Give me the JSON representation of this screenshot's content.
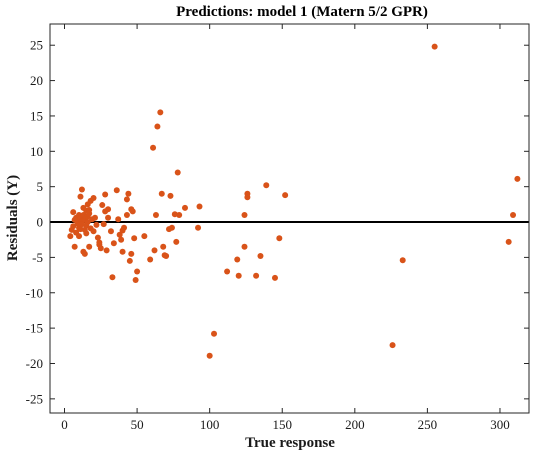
{
  "chart_data": {
    "type": "scatter",
    "title": "Predictions: model 1 (Matern 5/2 GPR)",
    "xlabel": "True response",
    "ylabel": "Residuals (Y)",
    "xlim": [
      -10,
      320
    ],
    "ylim": [
      -27,
      28
    ],
    "xticks": [
      "0",
      "50",
      "100",
      "150",
      "200",
      "250",
      "300"
    ],
    "yticks": [
      "25",
      "20",
      "15",
      "10",
      "5",
      "0",
      "-5",
      "-10",
      "-15",
      "-20",
      "-25"
    ],
    "grid": false,
    "reference_line_y": 0,
    "colors": {
      "points": "#D95319",
      "zero_line": "#000000",
      "axes": "#262626"
    },
    "series": [
      {
        "points": [
          [
            4,
            -2.0
          ],
          [
            5,
            -1.1
          ],
          [
            6,
            1.4
          ],
          [
            6,
            -0.6
          ],
          [
            7,
            0.3
          ],
          [
            7,
            -3.5
          ],
          [
            8,
            -1.5
          ],
          [
            8,
            0.6
          ],
          [
            9,
            -0.2
          ],
          [
            9,
            0.3
          ],
          [
            10,
            -0.8
          ],
          [
            10,
            1.0
          ],
          [
            10,
            -2.0
          ],
          [
            11,
            3.6
          ],
          [
            11,
            0.5
          ],
          [
            11,
            -1.0
          ],
          [
            12,
            4.6
          ],
          [
            12,
            0.1
          ],
          [
            12,
            -0.3
          ],
          [
            13,
            2.0
          ],
          [
            13,
            -4.2
          ],
          [
            13,
            1.0
          ],
          [
            14,
            0.3
          ],
          [
            14,
            -1.1
          ],
          [
            14,
            -4.5
          ],
          [
            15,
            0.7
          ],
          [
            15,
            1.6
          ],
          [
            15,
            -0.5
          ],
          [
            15,
            -1.6
          ],
          [
            16,
            2.5
          ],
          [
            16,
            0.0
          ],
          [
            16,
            0.8
          ],
          [
            17,
            -3.5
          ],
          [
            17,
            1.7
          ],
          [
            17,
            1.2
          ],
          [
            18,
            3.0
          ],
          [
            18,
            -0.9
          ],
          [
            19,
            0.4
          ],
          [
            20,
            3.4
          ],
          [
            20,
            -1.3
          ],
          [
            21,
            0.6
          ],
          [
            22,
            -0.4
          ],
          [
            23,
            -2.2
          ],
          [
            24,
            -3.2
          ],
          [
            24,
            -2.9
          ],
          [
            25,
            -3.7
          ],
          [
            26,
            2.4
          ],
          [
            27,
            -0.3
          ],
          [
            28,
            3.9
          ],
          [
            28,
            1.5
          ],
          [
            29,
            -4.0
          ],
          [
            30,
            1.8
          ],
          [
            30,
            0.6
          ],
          [
            32,
            -1.3
          ],
          [
            33,
            -7.8
          ],
          [
            34,
            -3.0
          ],
          [
            36,
            4.5
          ],
          [
            37,
            0.4
          ],
          [
            38,
            -1.8
          ],
          [
            39,
            -2.5
          ],
          [
            40,
            -4.2
          ],
          [
            40,
            -1.2
          ],
          [
            41,
            -0.8
          ],
          [
            43,
            1.0
          ],
          [
            43,
            3.2
          ],
          [
            44,
            4.0
          ],
          [
            45,
            -5.5
          ],
          [
            46,
            -4.5
          ],
          [
            46,
            1.8
          ],
          [
            47,
            1.5
          ],
          [
            48,
            -2.3
          ],
          [
            49,
            -8.2
          ],
          [
            50,
            -7.0
          ],
          [
            55,
            -2.0
          ],
          [
            59,
            -5.3
          ],
          [
            61,
            10.5
          ],
          [
            62,
            -4.0
          ],
          [
            63,
            1.0
          ],
          [
            64,
            13.5
          ],
          [
            66,
            15.5
          ],
          [
            67,
            4.0
          ],
          [
            68,
            -3.5
          ],
          [
            69,
            -4.7
          ],
          [
            70,
            -4.8
          ],
          [
            72,
            -1.0
          ],
          [
            73,
            3.7
          ],
          [
            74,
            -0.8
          ],
          [
            76,
            1.1
          ],
          [
            77,
            -2.8
          ],
          [
            78,
            7.0
          ],
          [
            79,
            1.0
          ],
          [
            83,
            2.0
          ],
          [
            92,
            -0.8
          ],
          [
            93,
            2.2
          ],
          [
            100,
            -18.9
          ],
          [
            103,
            -15.8
          ],
          [
            112,
            -7.0
          ],
          [
            119,
            -5.3
          ],
          [
            120,
            -7.6
          ],
          [
            124,
            1.0
          ],
          [
            124,
            -3.5
          ],
          [
            126,
            4.0
          ],
          [
            126,
            3.5
          ],
          [
            132,
            -7.6
          ],
          [
            135,
            -4.8
          ],
          [
            139,
            5.2
          ],
          [
            145,
            -7.9
          ],
          [
            148,
            -2.3
          ],
          [
            152,
            3.8
          ],
          [
            226,
            -17.4
          ],
          [
            233,
            -5.4
          ],
          [
            255,
            24.8
          ],
          [
            306,
            -2.8
          ],
          [
            309,
            1.0
          ],
          [
            312,
            6.1
          ]
        ]
      }
    ]
  }
}
